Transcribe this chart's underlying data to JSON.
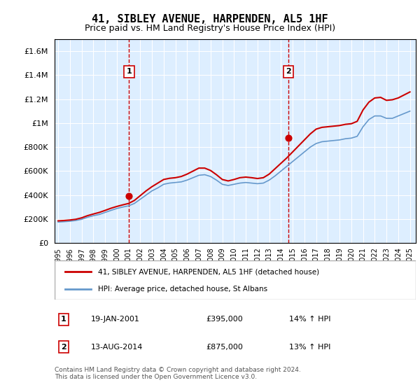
{
  "title": "41, SIBLEY AVENUE, HARPENDEN, AL5 1HF",
  "subtitle": "Price paid vs. HM Land Registry's House Price Index (HPI)",
  "footer": "Contains HM Land Registry data © Crown copyright and database right 2024.\nThis data is licensed under the Open Government Licence v3.0.",
  "legend_line1": "41, SIBLEY AVENUE, HARPENDEN, AL5 1HF (detached house)",
  "legend_line2": "HPI: Average price, detached house, St Albans",
  "annotation1": {
    "num": "1",
    "date": "19-JAN-2001",
    "price": "£395,000",
    "hpi": "14% ↑ HPI",
    "year": 2001.05,
    "value": 395000
  },
  "annotation2": {
    "num": "2",
    "date": "13-AUG-2014",
    "price": "£875,000",
    "hpi": "13% ↑ HPI",
    "year": 2014.62,
    "value": 875000
  },
  "hpi_line_color": "#6699cc",
  "price_line_color": "#cc0000",
  "background_color": "#ddeeff",
  "plot_bg": "#ddeeff",
  "ylim": [
    0,
    1700000
  ],
  "xlim_start": 1995,
  "xlim_end": 2025.5
}
